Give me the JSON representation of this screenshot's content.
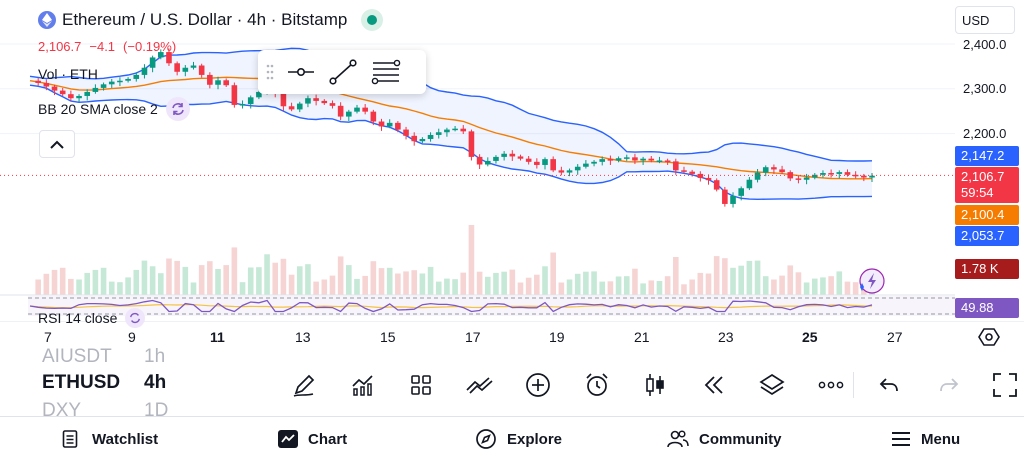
{
  "header": {
    "title": "Ethereum / U.S. Dollar · 4h · Bitstamp",
    "ohlc": {
      "close": "2,106.7",
      "change": "−4.1",
      "change_pct": "(−0.19%)"
    }
  },
  "legend": {
    "volume": "Vol · ETH",
    "bb": "BB 20 SMA close 2",
    "rsi": "RSI 14 close"
  },
  "currency_select": "USD",
  "price_axis": {
    "ticks": [
      "2,400.0",
      "2,300.0",
      "2,200.0"
    ]
  },
  "price_labels": {
    "bb_upper": "2,147.2",
    "last_price": "2,106.7",
    "countdown": "59:54",
    "bb_basis": "2,100.4",
    "bb_lower": "2,053.7",
    "volume": "1.78 K",
    "rsi": "49.88"
  },
  "time_axis": {
    "ticks": [
      {
        "label": "7",
        "bold": false
      },
      {
        "label": "9",
        "bold": false
      },
      {
        "label": "11",
        "bold": true
      },
      {
        "label": "13",
        "bold": false
      },
      {
        "label": "15",
        "bold": false
      },
      {
        "label": "17",
        "bold": false
      },
      {
        "label": "19",
        "bold": false
      },
      {
        "label": "21",
        "bold": false
      },
      {
        "label": "23",
        "bold": false
      },
      {
        "label": "25",
        "bold": true
      },
      {
        "label": "27",
        "bold": false
      }
    ]
  },
  "symbol_picker": {
    "previous": {
      "symbol": "AIUSDT",
      "interval": "1h"
    },
    "current": {
      "symbol": "ETHUSD",
      "interval": "4h"
    },
    "next": {
      "symbol": "DXY",
      "interval": "1D"
    }
  },
  "bottom_toolbar": {
    "tools": [
      "pencil-icon",
      "indicators-icon",
      "layouts-icon",
      "compare-icon",
      "add-icon",
      "alert-clock-icon",
      "candle-type-icon",
      "replay-icon",
      "layers-icon",
      "more-icon"
    ]
  },
  "bottom_nav": [
    "Watchlist",
    "Chart",
    "Explore",
    "Community",
    "Menu"
  ],
  "colors": {
    "up": "#089981",
    "down": "#f23645",
    "bb_band": "#2962ff",
    "bb_basis": "#f57c00",
    "rsi": "#7e57c2",
    "volume_up": "#c6e8d6",
    "volume_down": "#f6d4d4"
  },
  "chart_data": {
    "type": "candlestick",
    "timeframe": "4h",
    "y_axis_ticks": [
      2400,
      2300,
      2200
    ],
    "x_axis_ticks": [
      "7",
      "9",
      "11",
      "13",
      "15",
      "17",
      "19",
      "21",
      "23",
      "25",
      "27"
    ],
    "last_price": 2106.7,
    "bollinger": {
      "upper": 2147.2,
      "basis": 2100.4,
      "lower": 2053.7
    },
    "volume_last": "1.78 K",
    "rsi_last": 49.88,
    "price_path": [
      2318,
      2313,
      2305,
      2296,
      2288,
      2279,
      2284,
      2293,
      2302,
      2310,
      2316,
      2318,
      2322,
      2331,
      2347,
      2370,
      2382,
      2357,
      2338,
      2347,
      2352,
      2331,
      2309,
      2319,
      2308,
      2264,
      2266,
      2281,
      2293,
      2316,
      2289,
      2261,
      2254,
      2267,
      2279,
      2273,
      2268,
      2262,
      2238,
      2249,
      2258,
      2249,
      2227,
      2216,
      2224,
      2209,
      2195,
      2183,
      2188,
      2197,
      2203,
      2209,
      2211,
      2205,
      2148,
      2131,
      2139,
      2148,
      2155,
      2149,
      2144,
      2137,
      2130,
      2143,
      2118,
      2113,
      2118,
      2126,
      2133,
      2137,
      2143,
      2140,
      2145,
      2147,
      2140,
      2144,
      2140,
      2140,
      2138,
      2118,
      2115,
      2110,
      2101,
      2096,
      2075,
      2043,
      2061,
      2078,
      2097,
      2113,
      2125,
      2120,
      2114,
      2100,
      2097,
      2102,
      2108,
      2112,
      2110,
      2114,
      2108,
      2106,
      2102,
      2106
    ]
  }
}
